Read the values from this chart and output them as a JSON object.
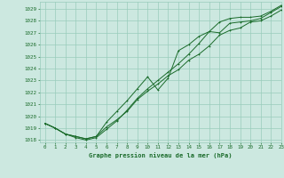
{
  "bg_color": "#cce8e0",
  "grid_color": "#99ccbb",
  "line_color": "#1a6b2a",
  "title": "Graphe pression niveau de la mer (hPa)",
  "xlim": [
    -0.5,
    23
  ],
  "ylim": [
    1017.8,
    1029.6
  ],
  "yticks": [
    1018,
    1019,
    1020,
    1021,
    1022,
    1023,
    1024,
    1025,
    1026,
    1027,
    1028,
    1029
  ],
  "xticks": [
    0,
    1,
    2,
    3,
    4,
    5,
    6,
    7,
    8,
    9,
    10,
    11,
    12,
    13,
    14,
    15,
    16,
    17,
    18,
    19,
    20,
    21,
    22,
    23
  ],
  "line1_x": [
    0,
    1,
    2,
    3,
    4,
    5,
    6,
    7,
    8,
    9,
    10,
    11,
    12,
    13,
    14,
    15,
    16,
    17,
    18,
    19,
    20,
    21,
    22,
    23
  ],
  "line1_y": [
    1019.4,
    1019.0,
    1018.5,
    1018.3,
    1018.1,
    1018.3,
    1019.5,
    1020.4,
    1021.3,
    1022.3,
    1023.3,
    1022.2,
    1023.2,
    1025.5,
    1026.0,
    1026.7,
    1027.1,
    1027.0,
    1027.8,
    1027.9,
    1028.0,
    1028.2,
    1028.7,
    1029.2
  ],
  "line2_x": [
    0,
    1,
    2,
    3,
    4,
    5,
    6,
    7,
    8,
    9,
    10,
    11,
    12,
    13,
    14,
    15,
    16,
    17,
    18,
    19,
    20,
    21,
    22,
    23
  ],
  "line2_y": [
    1019.4,
    1019.0,
    1018.5,
    1018.3,
    1018.1,
    1018.3,
    1019.1,
    1019.7,
    1020.4,
    1021.4,
    1022.1,
    1022.7,
    1023.4,
    1023.9,
    1024.7,
    1025.2,
    1025.9,
    1026.8,
    1027.2,
    1027.4,
    1027.9,
    1028.0,
    1028.4,
    1028.9
  ],
  "line3_x": [
    0,
    1,
    2,
    3,
    4,
    5,
    6,
    7,
    8,
    9,
    10,
    11,
    12,
    13,
    14,
    15,
    16,
    17,
    18,
    19,
    20,
    21,
    22,
    23
  ],
  "line3_y": [
    1019.4,
    1019.0,
    1018.5,
    1018.2,
    1018.0,
    1018.2,
    1018.9,
    1019.6,
    1020.5,
    1021.5,
    1022.3,
    1023.0,
    1023.7,
    1024.4,
    1025.2,
    1026.1,
    1027.1,
    1027.9,
    1028.2,
    1028.3,
    1028.3,
    1028.4,
    1028.8,
    1029.3
  ]
}
